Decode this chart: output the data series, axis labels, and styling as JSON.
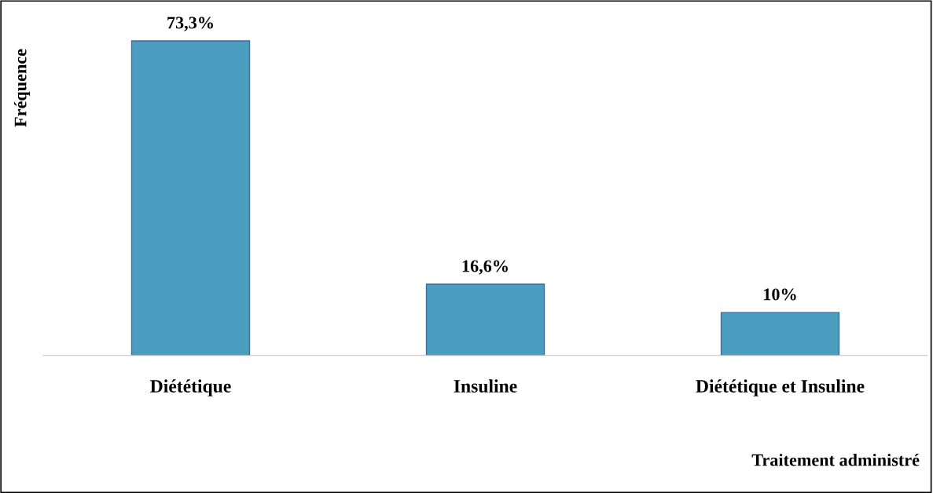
{
  "chart_data": {
    "type": "bar",
    "xlabel": "Traitement administré",
    "ylabel": "Fréquence",
    "categories": [
      "Diététique",
      "Insuline",
      "Diététique et Insuline"
    ],
    "values": [
      73.3,
      16.6,
      10
    ],
    "value_labels": [
      "73,3%",
      "16,6%",
      "10%"
    ],
    "color": "#4b9dc0",
    "grid": false,
    "legend": false
  }
}
